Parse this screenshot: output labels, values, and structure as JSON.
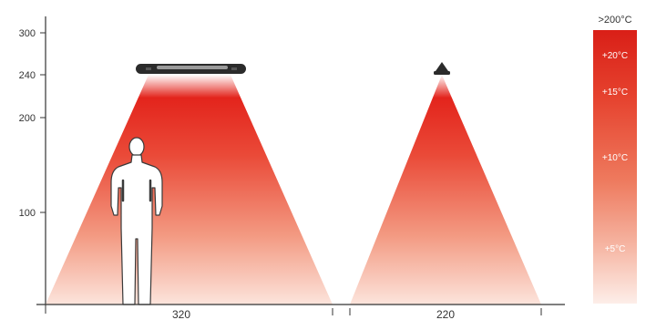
{
  "axis": {
    "ticks": [
      {
        "value": 300,
        "label": "300"
      },
      {
        "value": 240,
        "label": "240"
      },
      {
        "value": 200,
        "label": "200"
      },
      {
        "value": 100,
        "label": "100"
      }
    ]
  },
  "heaters": [
    {
      "type": "long-panel",
      "spread_label": "320",
      "spread_cm": 320
    },
    {
      "type": "bulb",
      "spread_label": "220",
      "spread_cm": 220
    }
  ],
  "temperature_scale": {
    "top_label": ">200°C",
    "levels": [
      "+20°C",
      "+15°C",
      "+10°C",
      "+5°C"
    ]
  },
  "colors": {
    "hot": "#e3241c",
    "warm": "#ef6a4e",
    "cool": "#fbe3dc",
    "axis": "#333333"
  },
  "icons": {
    "person": "person-silhouette-icon"
  }
}
